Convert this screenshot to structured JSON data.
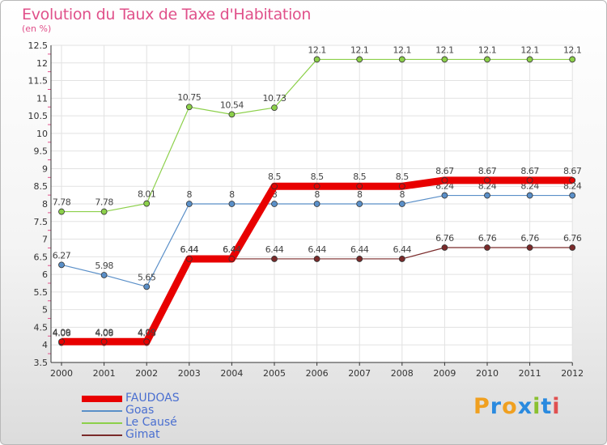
{
  "header": {
    "title": "Evolution du Taux de Taxe d'Habitation",
    "subtitle": "(en %)"
  },
  "logo": {
    "letters": [
      "P",
      "r",
      "o",
      "x",
      "i",
      "t",
      "i"
    ],
    "colors": [
      "#f0a020",
      "#2a8adf",
      "#f0a020",
      "#2a8adf",
      "#8ac030",
      "#2a8adf",
      "#e05050"
    ]
  },
  "colors": {
    "title": "#e0508a",
    "legend_text": "#4a6fd0",
    "axis": "#333333"
  },
  "chart_data": {
    "type": "line",
    "title": "Evolution du Taux de Taxe d'Habitation",
    "ylabel": "(en %)",
    "x": [
      "2000",
      "2001",
      "2002",
      "2003",
      "2004",
      "2005",
      "2006",
      "2007",
      "2008",
      "2009",
      "2010",
      "2011",
      "2012"
    ],
    "ylim": [
      3.5,
      12.5
    ],
    "yticks": [
      "3.5",
      "4",
      "4.5",
      "5",
      "5.5",
      "6",
      "6.5",
      "7",
      "7.5",
      "8",
      "8.5",
      "9",
      "9.5",
      "10",
      "10.5",
      "11",
      "11.5",
      "12",
      "12.5"
    ],
    "grid": true,
    "legend_position": "bottom-left",
    "series": [
      {
        "name": "Gimat",
        "color": "#7a2a2a",
        "width": 1.2,
        "values": [
          4.06,
          4.06,
          4.06,
          6.44,
          6.44,
          6.44,
          6.44,
          6.44,
          6.44,
          6.76,
          6.76,
          6.76,
          6.76
        ],
        "labels": [
          "4.06",
          "4.06",
          "4.06",
          "6.44",
          "6.44",
          "6.44",
          "6.44",
          "6.44",
          "6.44",
          "6.76",
          "6.76",
          "6.76",
          "6.76"
        ]
      },
      {
        "name": "Le Causé",
        "color": "#8cd04a",
        "width": 1.2,
        "values": [
          7.78,
          7.78,
          8.01,
          10.75,
          10.54,
          10.73,
          12.1,
          12.1,
          12.1,
          12.1,
          12.1,
          12.1,
          12.1
        ],
        "labels": [
          "7.78",
          "7.78",
          "8.01",
          "10.75",
          "10.54",
          "10.73",
          "12.1",
          "12.1",
          "12.1",
          "12.1",
          "12.1",
          "12.1",
          "12.1"
        ]
      },
      {
        "name": "Goas",
        "color": "#5a8fc8",
        "width": 1.2,
        "values": [
          6.27,
          5.98,
          5.65,
          8,
          8,
          8,
          8,
          8,
          8,
          8.24,
          8.24,
          8.24,
          8.24
        ],
        "labels": [
          "6.27",
          "5.98",
          "5.65",
          "8",
          "8",
          "8",
          "8",
          "8",
          "8",
          "8.24",
          "8.24",
          "8.24",
          "8.24"
        ]
      },
      {
        "name": "FAUDOAS",
        "color": "#e80000",
        "width": 9,
        "values": [
          4.09,
          4.09,
          4.09,
          6.44,
          6.44,
          8.5,
          8.5,
          8.5,
          8.5,
          8.67,
          8.67,
          8.67,
          8.67
        ],
        "labels": [
          "4.09",
          "4.09",
          "4.09",
          "6.44",
          "6.44",
          "8.5",
          "8.5",
          "8.5",
          "8.5",
          "8.67",
          "8.67",
          "8.67",
          "8.67"
        ]
      }
    ],
    "legend": [
      "FAUDOAS",
      "Goas",
      "Le Causé",
      "Gimat"
    ]
  }
}
